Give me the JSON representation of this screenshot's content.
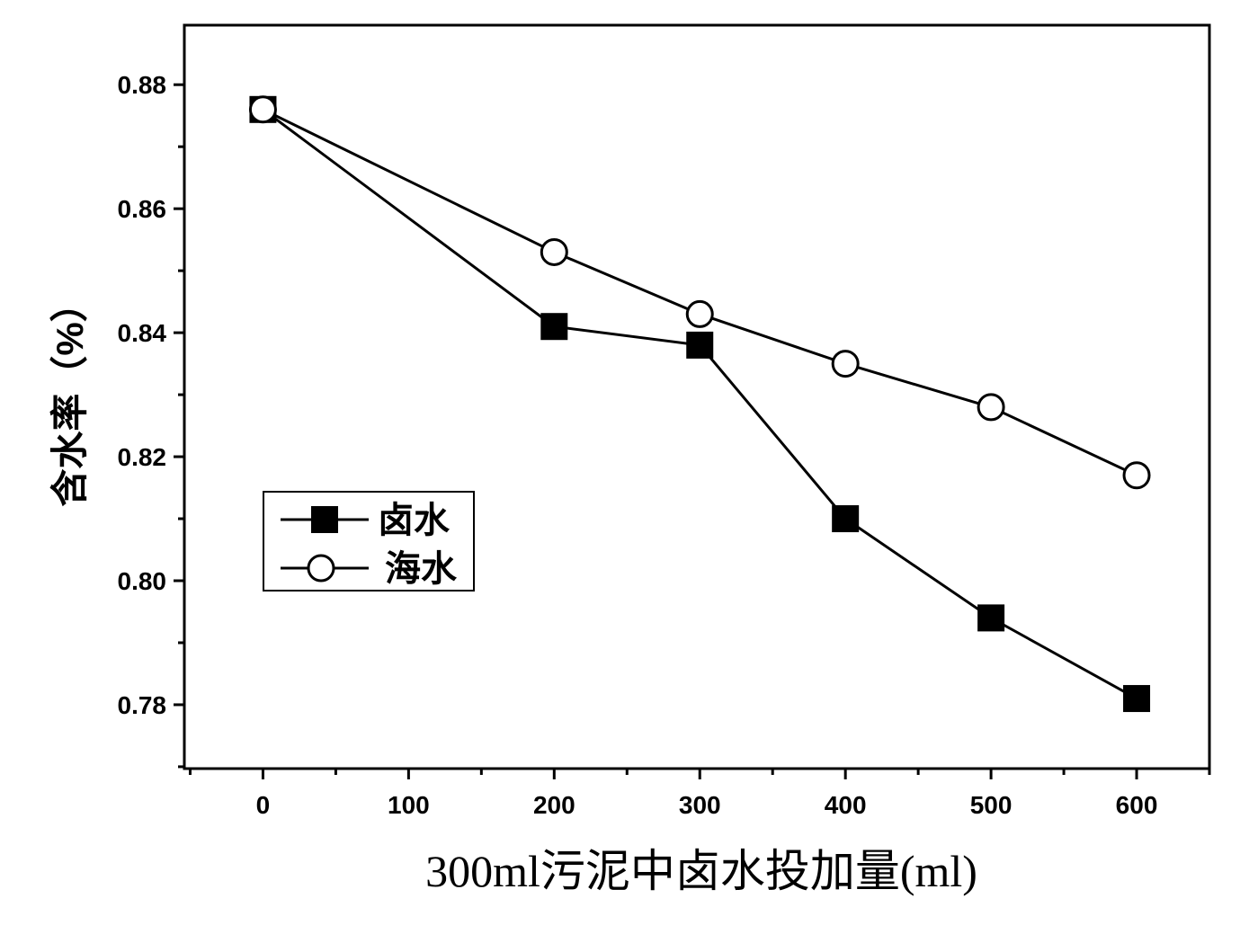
{
  "chart_data": {
    "type": "line",
    "xlabel": "300ml污泥中卤水投加量(ml)",
    "ylabel": "含水率（%）",
    "x": [
      0,
      200,
      300,
      400,
      500,
      600
    ],
    "series": [
      {
        "name": "卤水",
        "marker": "filled-square",
        "color": "#000000",
        "values": [
          0.876,
          0.841,
          0.838,
          0.81,
          0.794,
          0.781
        ]
      },
      {
        "name": "海水",
        "marker": "open-circle",
        "color": "#000000",
        "values": [
          0.876,
          0.853,
          0.843,
          0.835,
          0.828,
          0.817
        ]
      }
    ],
    "xlim": [
      -54,
      650
    ],
    "ylim": [
      0.7697,
      0.8896
    ],
    "xticks": [
      "0",
      "100",
      "200",
      "300",
      "400",
      "500",
      "600"
    ],
    "yticks": [
      "0.78",
      "0.80",
      "0.82",
      "0.84",
      "0.86",
      "0.88"
    ],
    "grid": false,
    "legend_position": "lower-left"
  }
}
